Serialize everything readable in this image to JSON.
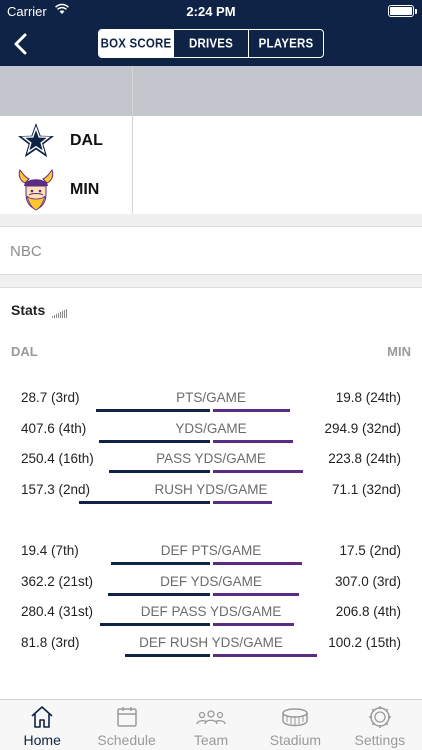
{
  "status": {
    "carrier": "Carrier",
    "time": "2:24 PM",
    "battery_level": 1.0
  },
  "nav": {
    "segments": [
      {
        "label": "BOX SCORE",
        "active": true
      },
      {
        "label": "DRIVES",
        "active": false
      },
      {
        "label": "PLAYERS",
        "active": false
      }
    ]
  },
  "teams": {
    "away": "DAL",
    "home": "MIN"
  },
  "network": "NBC",
  "stats": {
    "title": "Stats",
    "left_header": "DAL",
    "right_header": "MIN",
    "rows": [
      {
        "left": "28.7 (3rd)",
        "label": "PTS/GAME",
        "right": "19.8 (24th)"
      },
      {
        "left": "407.6 (4th)",
        "label": "YDS/GAME",
        "right": "294.9 (32nd)"
      },
      {
        "left": "250.4 (16th)",
        "label": "PASS YDS/GAME",
        "right": "223.8 (24th)"
      },
      {
        "left": "157.3 (2nd)",
        "label": "RUSH YDS/GAME",
        "right": "71.1 (32nd)"
      },
      {
        "left": "19.4 (7th)",
        "label": "DEF PTS/GAME",
        "right": "17.5 (2nd)"
      },
      {
        "left": "362.2 (21st)",
        "label": "DEF YDS/GAME",
        "right": "307.0 (3rd)"
      },
      {
        "left": "280.4 (31st)",
        "label": "DEF PASS YDS/GAME",
        "right": "206.8 (4th)"
      },
      {
        "left": "81.8 (3rd)",
        "label": "DEF RUSH YDS/GAME",
        "right": "100.2 (15th)"
      }
    ]
  },
  "tabs": [
    {
      "label": "Home",
      "active": true
    },
    {
      "label": "Schedule",
      "active": false
    },
    {
      "label": "Team",
      "active": false
    },
    {
      "label": "Stadium",
      "active": false
    },
    {
      "label": "Settings",
      "active": false
    }
  ],
  "colors": {
    "navy": "#0f2346",
    "purple": "#5a2d82",
    "gold": "#ffc62f"
  }
}
